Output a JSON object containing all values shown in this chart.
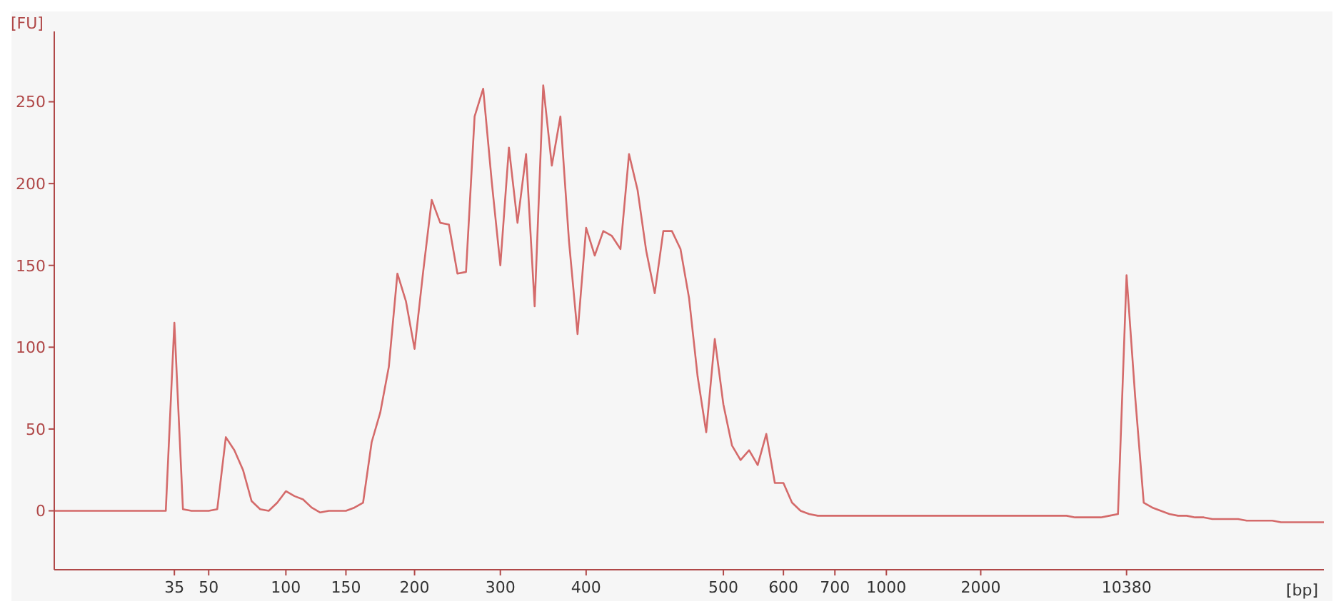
{
  "chart_data": {
    "type": "line",
    "xlabel": "[bp]",
    "ylabel": "[FU]",
    "categories": [
      null,
      null,
      null,
      null,
      null,
      null,
      null,
      null,
      null,
      null,
      null,
      null,
      null,
      null,
      "35",
      null,
      null,
      null,
      "50",
      null,
      null,
      null,
      null,
      null,
      null,
      null,
      null,
      "100",
      null,
      null,
      null,
      null,
      null,
      null,
      "150",
      null,
      null,
      null,
      null,
      null,
      null,
      null,
      "200",
      null,
      null,
      null,
      null,
      null,
      null,
      null,
      null,
      null,
      "300",
      null,
      null,
      null,
      null,
      null,
      null,
      null,
      null,
      null,
      "400",
      null,
      null,
      null,
      null,
      null,
      null,
      null,
      null,
      null,
      null,
      null,
      null,
      null,
      null,
      null,
      "500",
      null,
      null,
      null,
      null,
      null,
      null,
      "600",
      null,
      null,
      null,
      null,
      null,
      "700",
      null,
      null,
      null,
      null,
      null,
      "1000",
      null,
      null,
      null,
      null,
      null,
      null,
      null,
      null,
      null,
      null,
      "2000",
      null,
      null,
      null,
      null,
      null,
      null,
      null,
      null,
      null,
      null,
      null,
      null,
      null,
      null,
      null,
      null,
      "10380",
      null,
      null,
      null,
      null,
      null,
      null,
      null,
      null,
      null,
      null,
      null,
      null,
      null,
      null,
      null,
      null,
      null,
      null,
      null,
      null,
      null,
      null,
      null
    ],
    "series": [
      {
        "color": "#d46a6a",
        "values": [
          0,
          0,
          0,
          0,
          0,
          0,
          0,
          0,
          0,
          0,
          0,
          0,
          0,
          0,
          115,
          1,
          0,
          0,
          0,
          1,
          45,
          37,
          25,
          6,
          1,
          0,
          5,
          12,
          9,
          7,
          2,
          -1,
          0,
          0,
          0,
          2,
          5,
          42,
          60,
          88,
          145,
          128,
          99,
          146,
          190,
          176,
          175,
          145,
          146,
          241,
          258,
          201,
          150,
          222,
          176,
          218,
          125,
          260,
          211,
          241,
          165,
          108,
          173,
          156,
          171,
          168,
          160,
          218,
          196,
          159,
          133,
          171,
          171,
          160,
          130,
          82,
          48,
          105,
          65,
          40,
          31,
          37,
          28,
          47,
          17,
          17,
          5,
          0,
          -2,
          -3,
          -3,
          -3,
          -3,
          -3,
          -3,
          -3,
          -3,
          -3,
          -3,
          -3,
          -3,
          -3,
          -3,
          -3,
          -3,
          -3,
          -3,
          -3,
          -3,
          -3,
          -3,
          -3,
          -3,
          -3,
          -3,
          -3,
          -3,
          -3,
          -3,
          -4,
          -4,
          -4,
          -4,
          -3,
          -2,
          144,
          70,
          5,
          2,
          0,
          -2,
          -3,
          -3,
          -4,
          -4,
          -5,
          -5,
          -5,
          -5,
          -6,
          -6,
          -6,
          -6,
          -7,
          -7,
          -7,
          -7,
          -7,
          -7
        ]
      }
    ],
    "ylim": [
      -36,
      293
    ],
    "yticks": [
      0,
      50,
      100,
      150,
      200,
      250
    ],
    "grid": false,
    "legend": false,
    "marker": "none",
    "line_style": "solid"
  }
}
